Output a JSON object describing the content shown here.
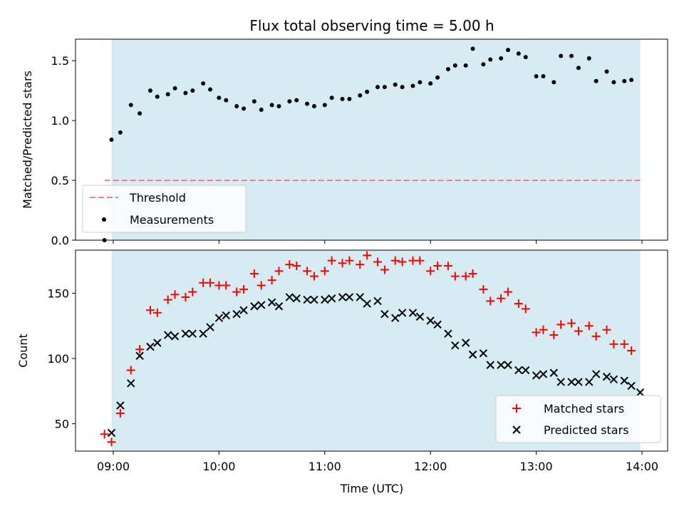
{
  "chart_data": [
    {
      "type": "scatter",
      "title": "Flux total observing time = 5.00 h",
      "xlabel": "",
      "ylabel": "Matched/Predicted stars",
      "ylim": [
        0,
        1.68
      ],
      "y_ticks": [
        "0.0",
        "0.5",
        "1.0",
        "1.5"
      ],
      "y_tick_values": [
        0,
        0.5,
        1.0,
        1.5
      ],
      "shaded_span": [
        "08:59",
        "13:59"
      ],
      "threshold": {
        "name": "Threshold",
        "value": 0.5,
        "color": "#f08080"
      },
      "legend": {
        "position": "lower-left",
        "entries": [
          "Threshold",
          "Measurements"
        ]
      },
      "series": [
        {
          "name": "Measurements",
          "color": "#000000",
          "x": [
            "08:55",
            "08:59",
            "09:04",
            "09:10",
            "09:15",
            "09:21",
            "09:25",
            "09:31",
            "09:35",
            "09:41",
            "09:45",
            "09:51",
            "09:55",
            "10:00",
            "10:04",
            "10:10",
            "10:14",
            "10:20",
            "10:24",
            "10:30",
            "10:34",
            "10:40",
            "10:44",
            "10:50",
            "10:54",
            "11:00",
            "11:04",
            "11:10",
            "11:14",
            "11:20",
            "11:24",
            "11:30",
            "11:34",
            "11:40",
            "11:44",
            "11:50",
            "11:54",
            "12:00",
            "12:04",
            "12:10",
            "12:14",
            "12:20",
            "12:24",
            "12:30",
            "12:34",
            "12:40",
            "12:44",
            "12:50",
            "12:54",
            "13:00",
            "13:04",
            "13:10",
            "13:14",
            "13:20",
            "13:24",
            "13:30",
            "13:34",
            "13:40",
            "13:44",
            "13:50",
            "13:54"
          ],
          "y": [
            0.0,
            0.84,
            0.9,
            1.13,
            1.06,
            1.25,
            1.2,
            1.22,
            1.27,
            1.23,
            1.25,
            1.31,
            1.26,
            1.19,
            1.17,
            1.12,
            1.1,
            1.16,
            1.09,
            1.13,
            1.12,
            1.16,
            1.17,
            1.14,
            1.12,
            1.13,
            1.19,
            1.18,
            1.18,
            1.21,
            1.24,
            1.28,
            1.28,
            1.3,
            1.28,
            1.29,
            1.32,
            1.31,
            1.36,
            1.43,
            1.46,
            1.46,
            1.6,
            1.47,
            1.51,
            1.52,
            1.59,
            1.56,
            1.53,
            1.37,
            1.37,
            1.32,
            1.54,
            1.54,
            1.44,
            1.52,
            1.33,
            1.41,
            1.32,
            1.33,
            1.34
          ]
        }
      ]
    },
    {
      "type": "scatter",
      "title": "",
      "xlabel": "Time (UTC)",
      "ylabel": "Count",
      "ylim": [
        29,
        183
      ],
      "y_ticks": [
        "50",
        "100",
        "150"
      ],
      "y_tick_values": [
        50,
        100,
        150
      ],
      "x_ticks": [
        "09:00",
        "10:00",
        "11:00",
        "12:00",
        "13:00",
        "14:00"
      ],
      "shaded_span": [
        "08:59",
        "13:59"
      ],
      "legend": {
        "position": "lower-right",
        "entries": [
          "Matched stars",
          "Predicted stars"
        ]
      },
      "series": [
        {
          "name": "Matched stars",
          "color": "#ff0000",
          "marker": "+",
          "x": [
            "08:55",
            "08:59",
            "09:04",
            "09:10",
            "09:15",
            "09:21",
            "09:25",
            "09:31",
            "09:35",
            "09:41",
            "09:45",
            "09:51",
            "09:55",
            "10:00",
            "10:04",
            "10:10",
            "10:14",
            "10:20",
            "10:24",
            "10:30",
            "10:34",
            "10:40",
            "10:44",
            "10:50",
            "10:54",
            "11:00",
            "11:04",
            "11:10",
            "11:14",
            "11:20",
            "11:24",
            "11:30",
            "11:34",
            "11:40",
            "11:44",
            "11:50",
            "11:54",
            "12:00",
            "12:04",
            "12:10",
            "12:14",
            "12:20",
            "12:24",
            "12:30",
            "12:34",
            "12:40",
            "12:44",
            "12:50",
            "12:54",
            "13:00",
            "13:04",
            "13:10",
            "13:14",
            "13:20",
            "13:24",
            "13:30",
            "13:34",
            "13:40",
            "13:44",
            "13:50",
            "13:54"
          ],
          "y": [
            42,
            36,
            58,
            91,
            107,
            137,
            135,
            145,
            149,
            147,
            151,
            158,
            158,
            156,
            156,
            151,
            153,
            165,
            156,
            160,
            167,
            172,
            171,
            167,
            163,
            167,
            175,
            173,
            175,
            172,
            179,
            174,
            168,
            175,
            174,
            175,
            175,
            167,
            171,
            171,
            163,
            163,
            165,
            153,
            144,
            146,
            151,
            142,
            138,
            120,
            122,
            118,
            126,
            127,
            121,
            125,
            117,
            122,
            111,
            111,
            106
          ]
        },
        {
          "name": "Predicted stars",
          "color": "#000000",
          "marker": "x",
          "x": [
            "08:59",
            "09:04",
            "09:10",
            "09:15",
            "09:21",
            "09:25",
            "09:31",
            "09:35",
            "09:41",
            "09:45",
            "09:51",
            "09:55",
            "10:00",
            "10:04",
            "10:10",
            "10:14",
            "10:20",
            "10:24",
            "10:30",
            "10:34",
            "10:40",
            "10:44",
            "10:50",
            "10:54",
            "11:00",
            "11:04",
            "11:10",
            "11:14",
            "11:20",
            "11:24",
            "11:30",
            "11:34",
            "11:40",
            "11:44",
            "11:50",
            "11:54",
            "12:00",
            "12:04",
            "12:10",
            "12:14",
            "12:20",
            "12:24",
            "12:30",
            "12:34",
            "12:40",
            "12:44",
            "12:50",
            "12:54",
            "13:00",
            "13:04",
            "13:10",
            "13:14",
            "13:20",
            "13:24",
            "13:30",
            "13:34",
            "13:40",
            "13:44",
            "13:50",
            "13:54",
            "13:59"
          ],
          "y": [
            43,
            64,
            81,
            102,
            109,
            112,
            118,
            117,
            119,
            119,
            119,
            124,
            131,
            133,
            134,
            137,
            140,
            141,
            143,
            140,
            147,
            146,
            145,
            145,
            145,
            146,
            147,
            147,
            147,
            142,
            144,
            134,
            131,
            135,
            135,
            132,
            129,
            126,
            119,
            110,
            112,
            103,
            104,
            95,
            95,
            95,
            91,
            91,
            87,
            88,
            89,
            82,
            82,
            82,
            82,
            88,
            86,
            84,
            83,
            79,
            74
          ]
        }
      ]
    }
  ]
}
